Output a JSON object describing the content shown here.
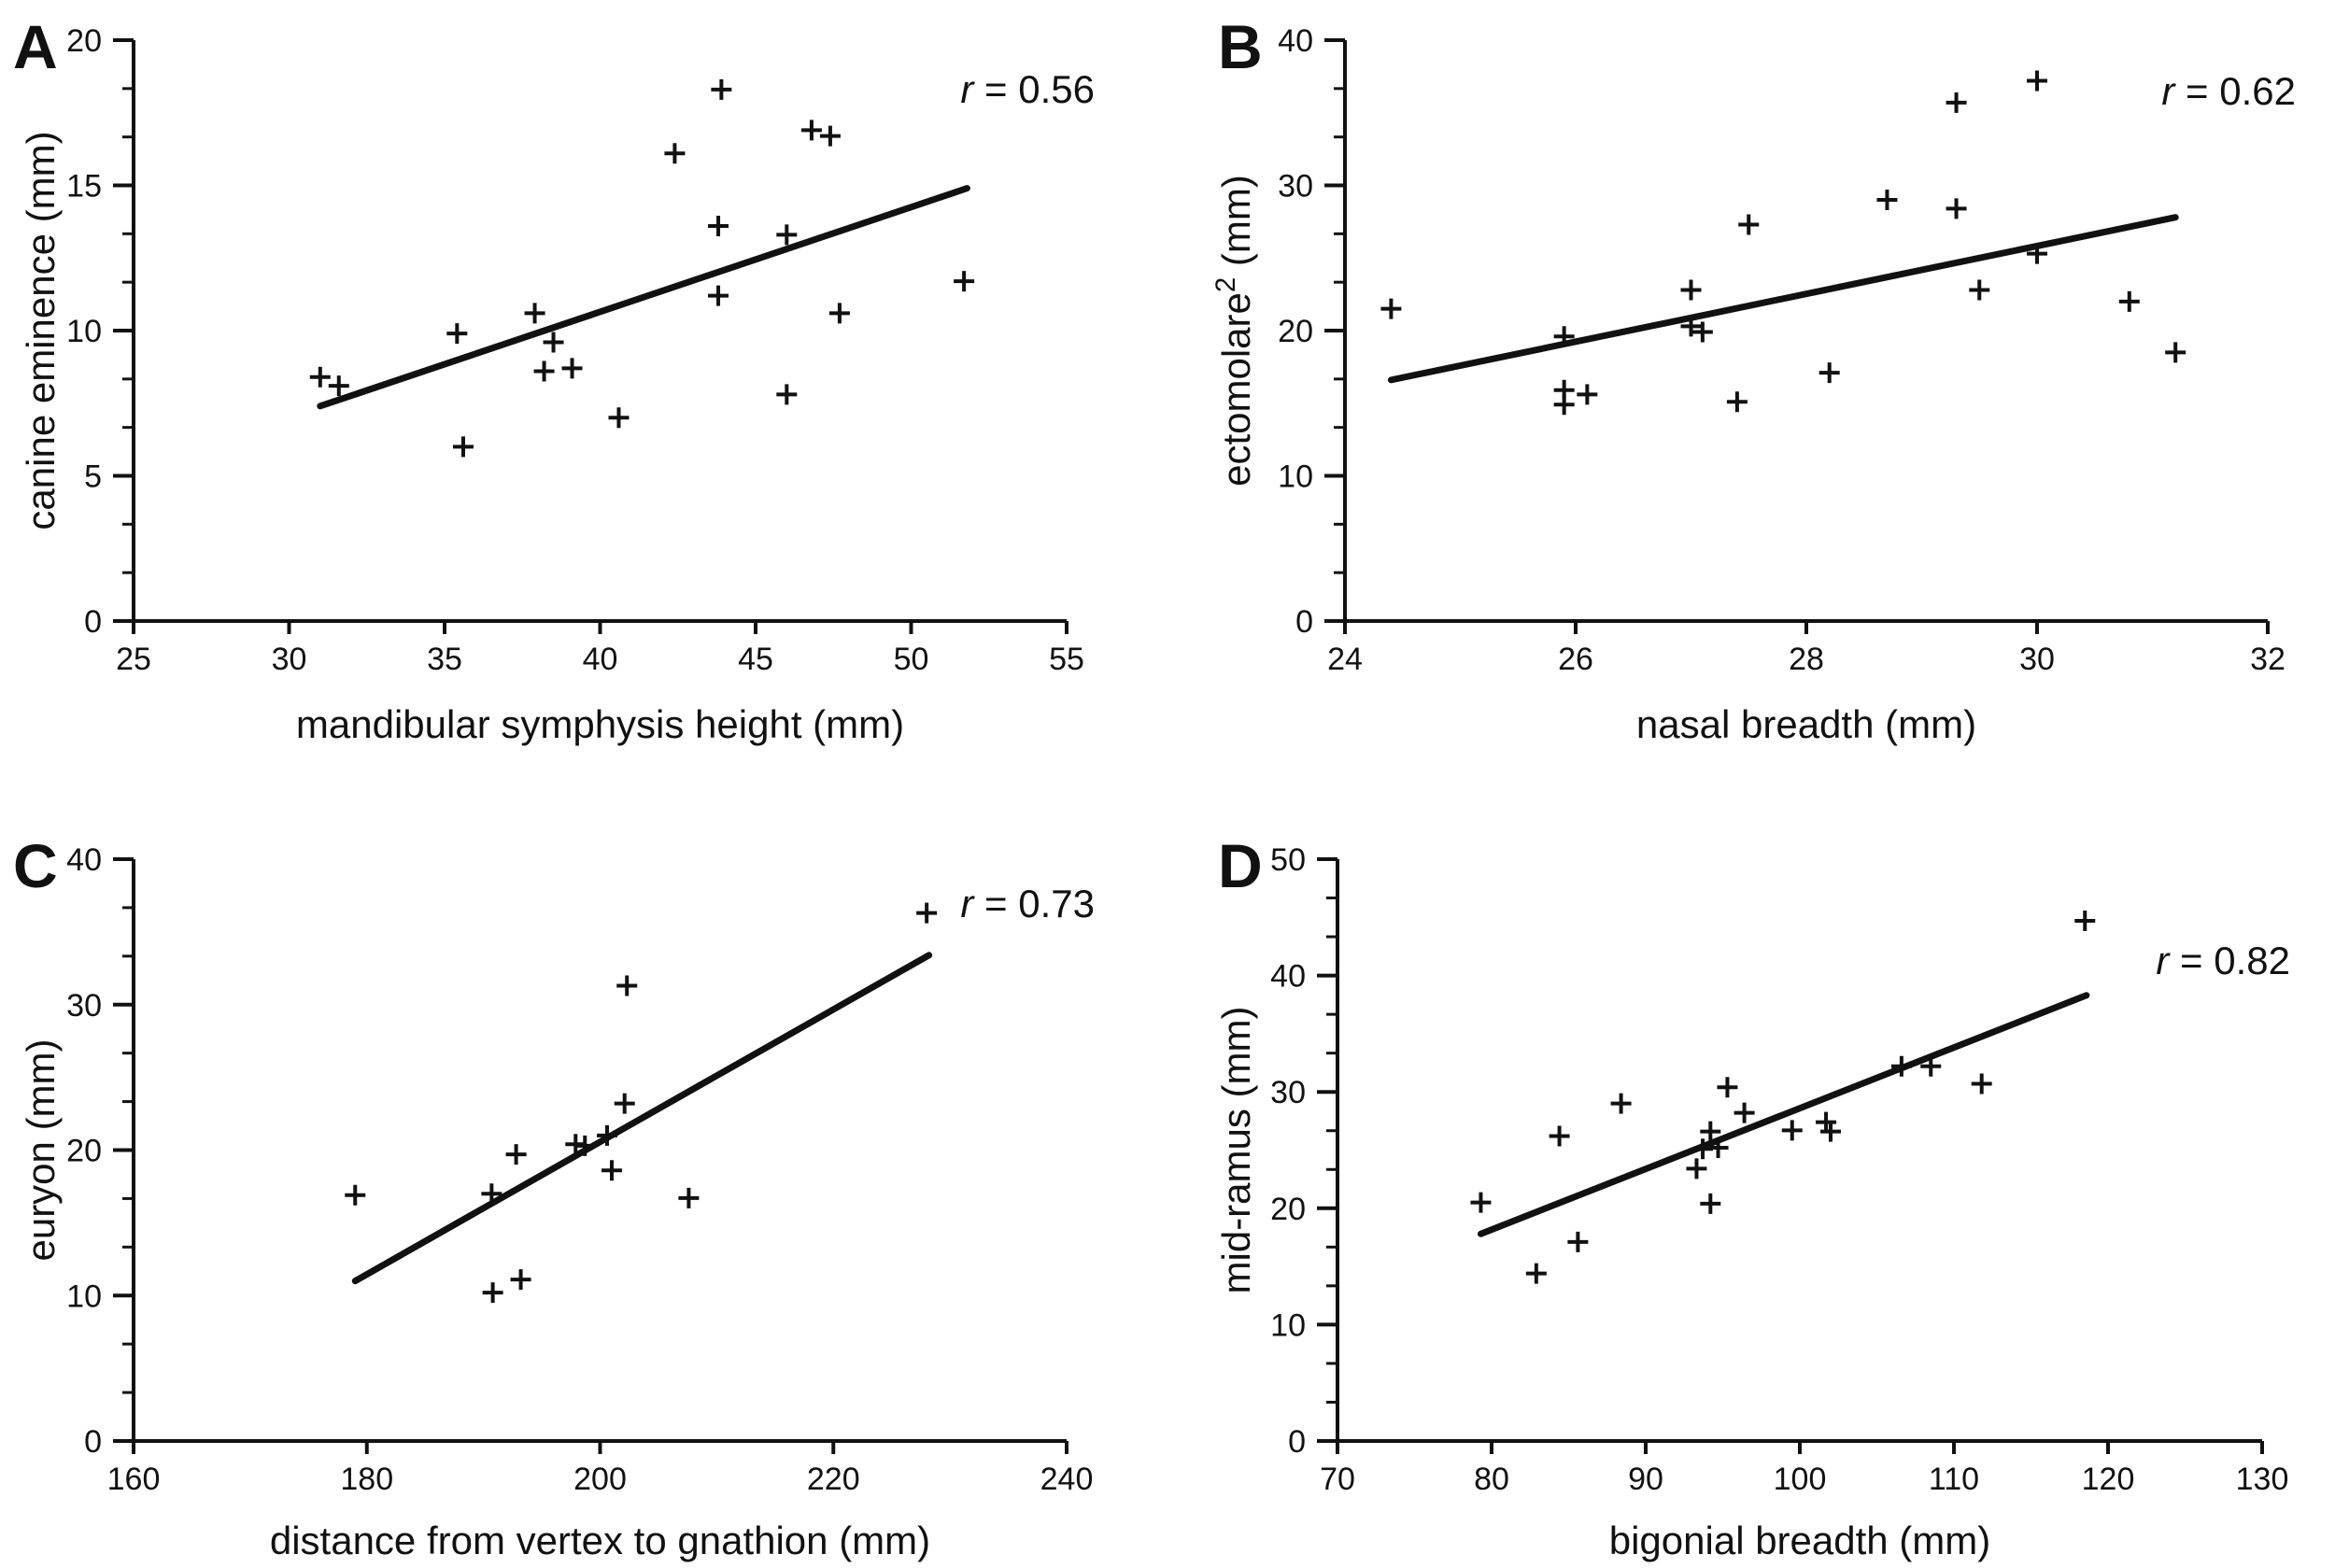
{
  "figure": {
    "background": "#ffffff",
    "ink_color": "#111111",
    "marker_glyph": "plus-cross",
    "chart_data": [
      {
        "type": "scatter",
        "panel_label": "A",
        "r_var": "r",
        "r_rest": " = 0.56",
        "r_value": 0.56,
        "xlabel": "mandibular symphysis height (mm)",
        "ylabel_parts": [
          {
            "t": "canine eminence (mm)",
            "sup": false
          }
        ],
        "xlim": [
          25,
          55
        ],
        "ylim": [
          0,
          20
        ],
        "xticks": [
          25,
          30,
          35,
          40,
          45,
          50,
          55
        ],
        "yticks": [
          0,
          5,
          10,
          15,
          20
        ],
        "y_minor_per_interval": 2,
        "grid": false,
        "points": [
          [
            31.0,
            8.4
          ],
          [
            31.6,
            8.1
          ],
          [
            35.4,
            9.9
          ],
          [
            35.6,
            6.0
          ],
          [
            37.9,
            10.6
          ],
          [
            38.2,
            8.6
          ],
          [
            38.5,
            9.6
          ],
          [
            39.1,
            8.7
          ],
          [
            40.6,
            7.0
          ],
          [
            42.4,
            16.1
          ],
          [
            43.8,
            13.6
          ],
          [
            43.8,
            11.2
          ],
          [
            43.9,
            18.3
          ],
          [
            46.0,
            13.3
          ],
          [
            46.0,
            7.8
          ],
          [
            46.8,
            16.9
          ],
          [
            47.4,
            16.7
          ],
          [
            47.7,
            10.6
          ],
          [
            51.7,
            11.7
          ]
        ],
        "trendline": [
          [
            31.0,
            7.4
          ],
          [
            51.8,
            14.9
          ]
        ]
      },
      {
        "type": "scatter",
        "panel_label": "B",
        "r_var": "r",
        "r_rest": " = 0.62",
        "r_value": 0.62,
        "xlabel": "nasal breadth (mm)",
        "ylabel_parts": [
          {
            "t": "ectomolare",
            "sup": false
          },
          {
            "t": "2",
            "sup": true
          },
          {
            "t": " (mm)",
            "sup": false
          }
        ],
        "xlim": [
          24,
          32
        ],
        "ylim": [
          0,
          40
        ],
        "xticks": [
          24,
          26,
          28,
          30,
          32
        ],
        "yticks": [
          0,
          10,
          20,
          30,
          40
        ],
        "y_minor_per_interval": 2,
        "grid": false,
        "points": [
          [
            24.4,
            21.5
          ],
          [
            25.9,
            19.6
          ],
          [
            25.9,
            15.9
          ],
          [
            25.9,
            14.9
          ],
          [
            26.1,
            15.6
          ],
          [
            27.0,
            22.8
          ],
          [
            27.0,
            20.3
          ],
          [
            27.1,
            19.9
          ],
          [
            27.4,
            15.1
          ],
          [
            27.5,
            27.3
          ],
          [
            28.2,
            17.1
          ],
          [
            28.7,
            29.0
          ],
          [
            29.3,
            35.7
          ],
          [
            29.3,
            28.4
          ],
          [
            29.5,
            22.8
          ],
          [
            30.0,
            37.2
          ],
          [
            30.0,
            25.3
          ],
          [
            30.8,
            22.0
          ],
          [
            31.2,
            18.5
          ]
        ],
        "trendline": [
          [
            24.4,
            16.6
          ],
          [
            31.2,
            27.8
          ]
        ]
      },
      {
        "type": "scatter",
        "panel_label": "C",
        "r_var": "r",
        "r_rest": " = 0.73",
        "r_value": 0.73,
        "xlabel": "distance from vertex to gnathion (mm)",
        "ylabel_parts": [
          {
            "t": "euryon (mm)",
            "sup": false
          }
        ],
        "xlim": [
          160,
          240
        ],
        "ylim": [
          0,
          40
        ],
        "xticks": [
          160,
          180,
          200,
          220,
          240
        ],
        "yticks": [
          0,
          10,
          20,
          30,
          40
        ],
        "y_minor_per_interval": 2,
        "grid": false,
        "points": [
          [
            179.0,
            16.9
          ],
          [
            190.7,
            17.0
          ],
          [
            190.8,
            10.2
          ],
          [
            192.8,
            19.7
          ],
          [
            193.2,
            11.1
          ],
          [
            197.9,
            20.4
          ],
          [
            198.7,
            20.3
          ],
          [
            200.6,
            21.0
          ],
          [
            201.0,
            18.6
          ],
          [
            202.1,
            23.2
          ],
          [
            202.3,
            31.3
          ],
          [
            207.6,
            16.7
          ],
          [
            228.0,
            36.3
          ]
        ],
        "trendline": [
          [
            179.0,
            11.0
          ],
          [
            228.2,
            33.4
          ]
        ]
      },
      {
        "type": "scatter",
        "panel_label": "D",
        "r_var": "r",
        "r_rest": " = 0.82",
        "r_value": 0.82,
        "xlabel": "bigonial breadth (mm)",
        "ylabel_parts": [
          {
            "t": "mid-ramus (mm)",
            "sup": false
          }
        ],
        "xlim": [
          70,
          130
        ],
        "ylim": [
          0,
          50
        ],
        "xticks": [
          70,
          80,
          90,
          100,
          110,
          120,
          130
        ],
        "yticks": [
          0,
          10,
          20,
          30,
          40,
          50
        ],
        "y_minor_per_interval": 2,
        "grid": false,
        "points": [
          [
            79.3,
            20.5
          ],
          [
            82.9,
            14.4
          ],
          [
            84.4,
            26.2
          ],
          [
            85.6,
            17.1
          ],
          [
            88.4,
            29.0
          ],
          [
            93.3,
            23.4
          ],
          [
            93.7,
            25.1
          ],
          [
            94.2,
            26.6
          ],
          [
            94.2,
            20.4
          ],
          [
            94.7,
            25.2
          ],
          [
            95.3,
            30.4
          ],
          [
            96.4,
            28.2
          ],
          [
            99.5,
            26.7
          ],
          [
            101.7,
            27.4
          ],
          [
            102.0,
            26.6
          ],
          [
            106.6,
            32.2
          ],
          [
            108.5,
            32.2
          ],
          [
            111.8,
            30.7
          ],
          [
            118.5,
            44.7
          ]
        ],
        "trendline": [
          [
            79.3,
            17.8
          ],
          [
            118.6,
            38.3
          ]
        ]
      }
    ]
  }
}
